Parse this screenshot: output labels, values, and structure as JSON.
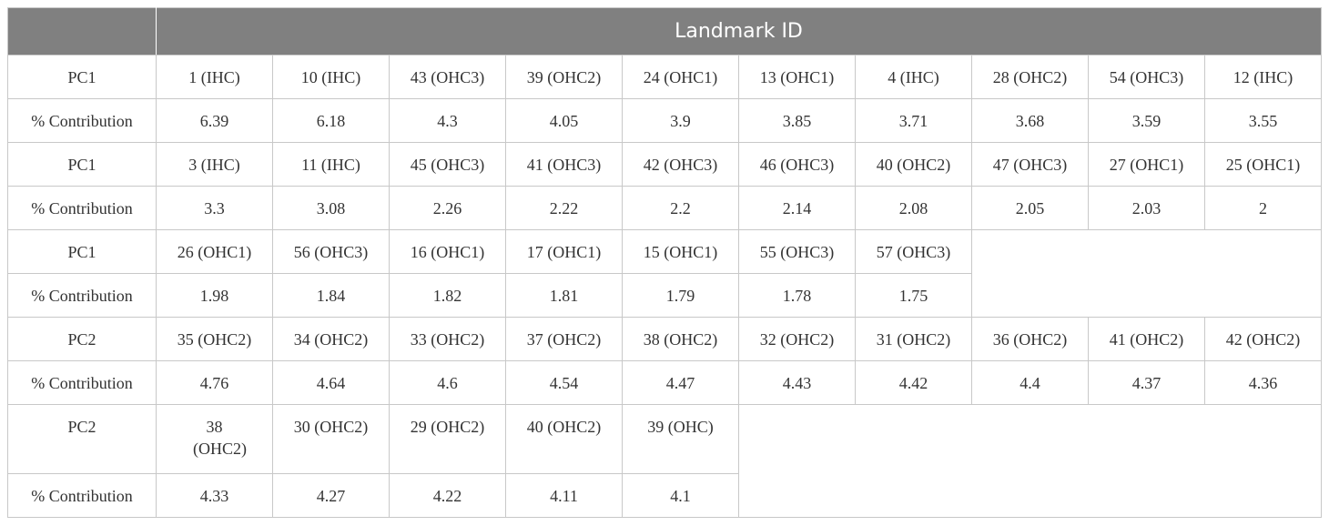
{
  "header": {
    "title": "Landmark ID"
  },
  "table": {
    "rows": [
      [
        "PC1",
        "1 (IHC)",
        "10 (IHC)",
        "43 (OHC3)",
        "39 (OHC2)",
        "24 (OHC1)",
        "13 (OHC1)",
        "4 (IHC)",
        "28 (OHC2)",
        "54 (OHC3)",
        "12 (IHC)"
      ],
      [
        "% Contribution",
        "6.39",
        "6.18",
        "4.3",
        "4.05",
        "3.9",
        "3.85",
        "3.71",
        "3.68",
        "3.59",
        "3.55"
      ],
      [
        "PC1",
        "3 (IHC)",
        "11 (IHC)",
        "45 (OHC3)",
        "41 (OHC3)",
        "42 (OHC3)",
        "46 (OHC3)",
        "40 (OHC2)",
        "47 (OHC3)",
        "27 (OHC1)",
        "25 (OHC1)"
      ],
      [
        "% Contribution",
        "3.3",
        "3.08",
        "2.26",
        "2.22",
        "2.2",
        "2.14",
        "2.08",
        "2.05",
        "2.03",
        "2"
      ],
      [
        "PC1",
        "26 (OHC1)",
        "56 (OHC3)",
        "16 (OHC1)",
        "17 (OHC1)",
        "15 (OHC1)",
        "55 (OHC3)",
        "57 (OHC3)"
      ],
      [
        "% Contribution",
        "1.98",
        "1.84",
        "1.82",
        "1.81",
        "1.79",
        "1.78",
        "1.75"
      ],
      [
        "PC2",
        "35 (OHC2)",
        "34 (OHC2)",
        "33 (OHC2)",
        "37 (OHC2)",
        "38 (OHC2)",
        "32 (OHC2)",
        "31 (OHC2)",
        "36 (OHC2)",
        "41 (OHC2)",
        "42 (OHC2)"
      ],
      [
        "% Contribution",
        "4.76",
        "4.64",
        "4.6",
        "4.54",
        "4.47",
        "4.43",
        "4.42",
        "4.4",
        "4.37",
        "4.36"
      ],
      [
        "PC2",
        "38 (OHC2)",
        "30 (OHC2)",
        "29 (OHC2)",
        "40 (OHC2)",
        "39 (OHC)"
      ],
      [
        "% Contribution",
        "4.33",
        "4.27",
        "4.22",
        "4.11",
        "4.1"
      ]
    ]
  }
}
